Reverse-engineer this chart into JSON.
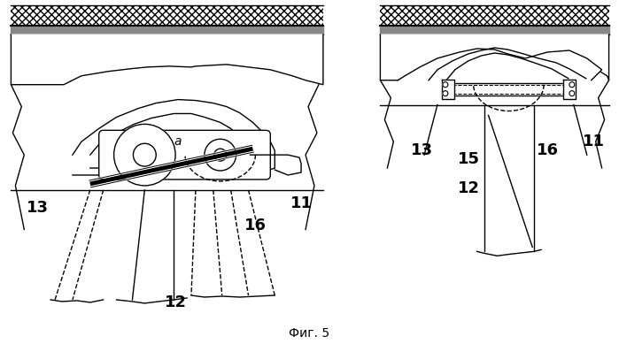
{
  "bg_color": "#ffffff",
  "line_color": "#000000",
  "title": "Фиг. 5",
  "title_fontsize": 10,
  "label_fontsize": 13,
  "lw": 1.0
}
